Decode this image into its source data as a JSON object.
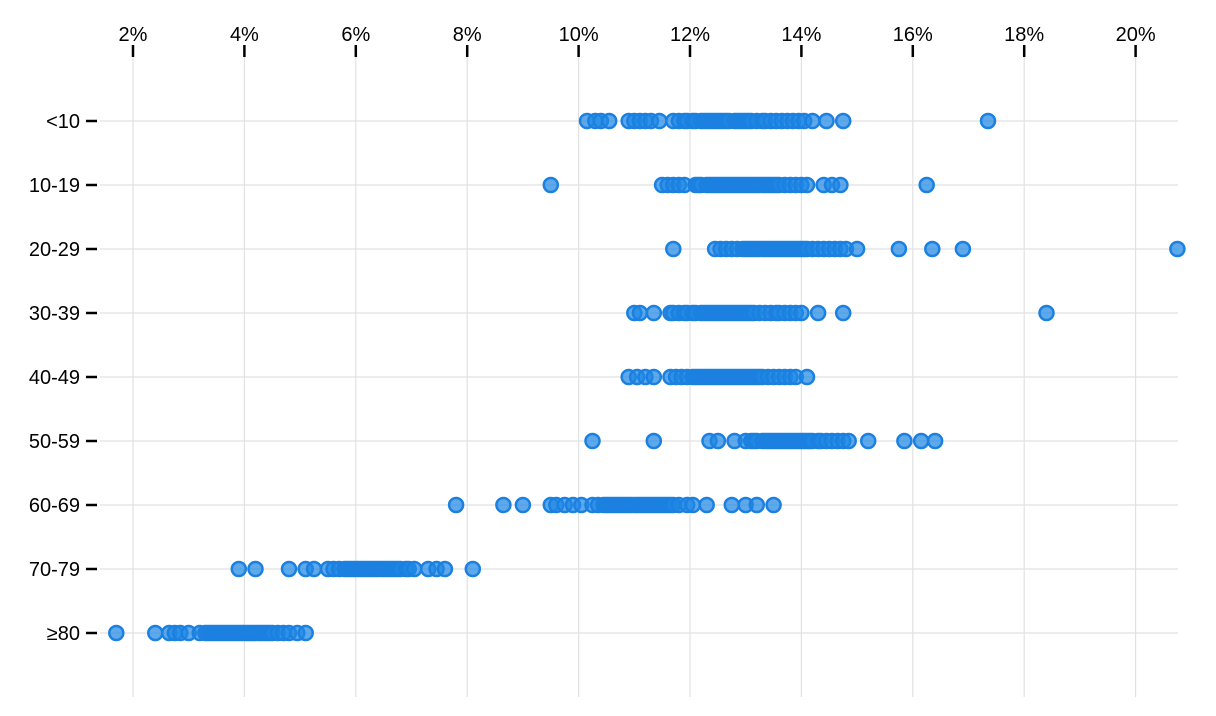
{
  "chart_data": {
    "type": "scatter",
    "variant": "horizontal-strip-dot-plot",
    "title": "",
    "xlabel": "",
    "ylabel": "",
    "legend": "none",
    "grid": true,
    "x_axis": {
      "position": "top",
      "unit": "percent",
      "tick_values": [
        2,
        4,
        6,
        8,
        10,
        12,
        14,
        16,
        18,
        20
      ],
      "tick_labels": [
        "2%",
        "4%",
        "6%",
        "8%",
        "10%",
        "12%",
        "14%",
        "16%",
        "18%",
        "20%"
      ],
      "xlim": [
        1.4,
        20.8
      ]
    },
    "y_axis": {
      "categories": [
        "<10",
        "10-19",
        "20-29",
        "30-39",
        "40-49",
        "50-59",
        "60-69",
        "70-79",
        "≥80"
      ]
    },
    "series": [
      {
        "category": "<10",
        "values": [
          10.15,
          10.3,
          10.4,
          10.55,
          10.9,
          11.0,
          11.1,
          11.2,
          11.3,
          11.45,
          11.7,
          11.8,
          11.9,
          11.95,
          12.05,
          12.1,
          12.2,
          12.25,
          12.3,
          12.35,
          12.4,
          12.45,
          12.5,
          12.55,
          12.6,
          12.65,
          12.7,
          12.8,
          12.85,
          12.9,
          12.95,
          13.0,
          13.05,
          13.1,
          13.2,
          13.3,
          13.35,
          13.45,
          13.55,
          13.65,
          13.75,
          13.85,
          13.95,
          14.05,
          14.2,
          14.45,
          14.75,
          17.35
        ]
      },
      {
        "category": "10-19",
        "values": [
          9.5,
          11.5,
          11.6,
          11.7,
          11.8,
          11.9,
          12.1,
          12.15,
          12.2,
          12.3,
          12.35,
          12.4,
          12.45,
          12.5,
          12.55,
          12.6,
          12.65,
          12.7,
          12.75,
          12.8,
          12.85,
          12.9,
          12.95,
          13.0,
          13.05,
          13.1,
          13.15,
          13.2,
          13.25,
          13.3,
          13.35,
          13.4,
          13.45,
          13.5,
          13.55,
          13.6,
          13.7,
          13.8,
          13.9,
          14.0,
          14.1,
          14.4,
          14.55,
          14.7,
          16.25
        ]
      },
      {
        "category": "20-29",
        "values": [
          11.7,
          12.45,
          12.55,
          12.65,
          12.75,
          12.85,
          12.95,
          13.0,
          13.05,
          13.1,
          13.15,
          13.2,
          13.25,
          13.3,
          13.35,
          13.4,
          13.45,
          13.5,
          13.55,
          13.6,
          13.65,
          13.7,
          13.75,
          13.8,
          13.85,
          13.9,
          13.95,
          14.0,
          14.05,
          14.1,
          14.2,
          14.3,
          14.4,
          14.5,
          14.6,
          14.7,
          14.8,
          15.0,
          15.75,
          16.35,
          16.9,
          20.75
        ]
      },
      {
        "category": "30-39",
        "values": [
          11.0,
          11.1,
          11.35,
          11.65,
          11.7,
          11.8,
          11.9,
          11.95,
          12.05,
          12.1,
          12.2,
          12.25,
          12.3,
          12.35,
          12.4,
          12.45,
          12.5,
          12.55,
          12.6,
          12.65,
          12.7,
          12.75,
          12.8,
          12.85,
          12.9,
          12.95,
          13.0,
          13.05,
          13.1,
          13.15,
          13.25,
          13.35,
          13.45,
          13.55,
          13.6,
          13.7,
          13.8,
          13.9,
          14.0,
          14.3,
          14.75,
          18.4
        ]
      },
      {
        "category": "40-49",
        "values": [
          10.9,
          11.05,
          11.2,
          11.35,
          11.65,
          11.75,
          11.85,
          11.95,
          12.05,
          12.1,
          12.15,
          12.2,
          12.25,
          12.3,
          12.35,
          12.4,
          12.45,
          12.5,
          12.55,
          12.6,
          12.65,
          12.7,
          12.75,
          12.8,
          12.85,
          12.9,
          12.95,
          13.0,
          13.05,
          13.1,
          13.15,
          13.2,
          13.25,
          13.3,
          13.4,
          13.5,
          13.6,
          13.7,
          13.8,
          13.9,
          14.1
        ]
      },
      {
        "category": "50-59",
        "values": [
          10.25,
          11.35,
          12.35,
          12.5,
          12.8,
          13.0,
          13.1,
          13.15,
          13.2,
          13.3,
          13.35,
          13.4,
          13.45,
          13.5,
          13.55,
          13.6,
          13.65,
          13.7,
          13.75,
          13.8,
          13.85,
          13.9,
          13.95,
          14.0,
          14.05,
          14.1,
          14.15,
          14.2,
          14.3,
          14.35,
          14.45,
          14.55,
          14.65,
          14.75,
          14.85,
          15.2,
          15.85,
          16.15,
          16.4
        ]
      },
      {
        "category": "60-69",
        "values": [
          7.8,
          8.65,
          9.0,
          9.5,
          9.6,
          9.75,
          9.9,
          10.05,
          10.25,
          10.35,
          10.45,
          10.5,
          10.55,
          10.6,
          10.65,
          10.7,
          10.75,
          10.8,
          10.85,
          10.9,
          10.95,
          11.0,
          11.05,
          11.1,
          11.15,
          11.2,
          11.25,
          11.3,
          11.35,
          11.4,
          11.45,
          11.5,
          11.55,
          11.6,
          11.65,
          11.7,
          11.8,
          11.95,
          12.05,
          12.3,
          12.75,
          13.0,
          13.2,
          13.5
        ]
      },
      {
        "category": "70-79",
        "values": [
          3.9,
          4.2,
          4.8,
          5.1,
          5.25,
          5.5,
          5.6,
          5.7,
          5.8,
          5.85,
          5.9,
          5.95,
          6.0,
          6.05,
          6.1,
          6.15,
          6.2,
          6.25,
          6.3,
          6.35,
          6.4,
          6.45,
          6.5,
          6.55,
          6.6,
          6.65,
          6.7,
          6.75,
          6.8,
          6.9,
          6.95,
          7.05,
          7.3,
          7.45,
          7.6,
          8.1
        ]
      },
      {
        "category": "≥80",
        "values": [
          1.7,
          2.4,
          2.65,
          2.75,
          2.85,
          3.0,
          3.2,
          3.3,
          3.35,
          3.4,
          3.45,
          3.5,
          3.55,
          3.6,
          3.65,
          3.7,
          3.75,
          3.8,
          3.85,
          3.9,
          3.95,
          4.0,
          4.05,
          4.1,
          4.15,
          4.2,
          4.25,
          4.3,
          4.35,
          4.4,
          4.45,
          4.5,
          4.6,
          4.7,
          4.8,
          4.95,
          5.1
        ]
      }
    ],
    "colors": {
      "point_fill": "#1e88e5",
      "point_fill_opacity": 0.72,
      "point_stroke": "#1b80e0",
      "grid": "#e1e1e1",
      "axis": "#000000"
    }
  }
}
